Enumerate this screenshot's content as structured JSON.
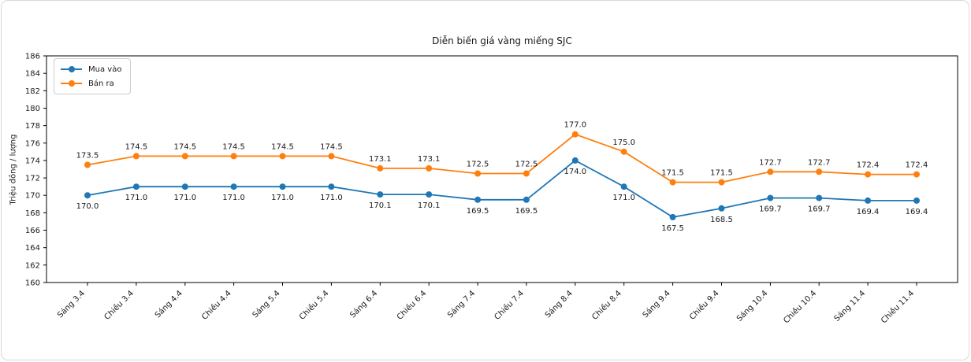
{
  "chart_data": {
    "type": "line",
    "title": "Diễn biến giá vàng miếng SJC",
    "xlabel": "",
    "ylabel": "Triệu đồng / lượng",
    "ylim": [
      160,
      186
    ],
    "ytick_step": 2,
    "grid": false,
    "legend_position": "top-left",
    "axis_color": "#000000",
    "text_color": "#1a1a1a",
    "categories": [
      "Sáng 3.4",
      "Chiều 3.4",
      "Sáng 4.4",
      "Chiều 4.4",
      "Sáng 5.4",
      "Chiều 5.4",
      "Sáng 6.4",
      "Chiều 6.4",
      "Sáng 7.4",
      "Chiều 7.4",
      "Sáng 8.4",
      "Chiều 8.4",
      "Sáng 9.4",
      "Chiều 9.4",
      "Sáng 10.4",
      "Chiều 10.4",
      "Sáng 11.4",
      "Chiều 11.4"
    ],
    "series": [
      {
        "name": "Mua vào",
        "color": "#1f77b4",
        "label_position": "below",
        "values": [
          170.0,
          171.0,
          171.0,
          171.0,
          171.0,
          171.0,
          170.1,
          170.1,
          169.5,
          169.5,
          174.0,
          171.0,
          167.5,
          168.5,
          169.7,
          169.7,
          169.4,
          169.4
        ]
      },
      {
        "name": "Bán ra",
        "color": "#ff7f0e",
        "label_position": "above",
        "values": [
          173.5,
          174.5,
          174.5,
          174.5,
          174.5,
          174.5,
          173.1,
          173.1,
          172.5,
          172.5,
          177.0,
          175.0,
          171.5,
          171.5,
          172.7,
          172.7,
          172.4,
          172.4
        ]
      }
    ]
  }
}
